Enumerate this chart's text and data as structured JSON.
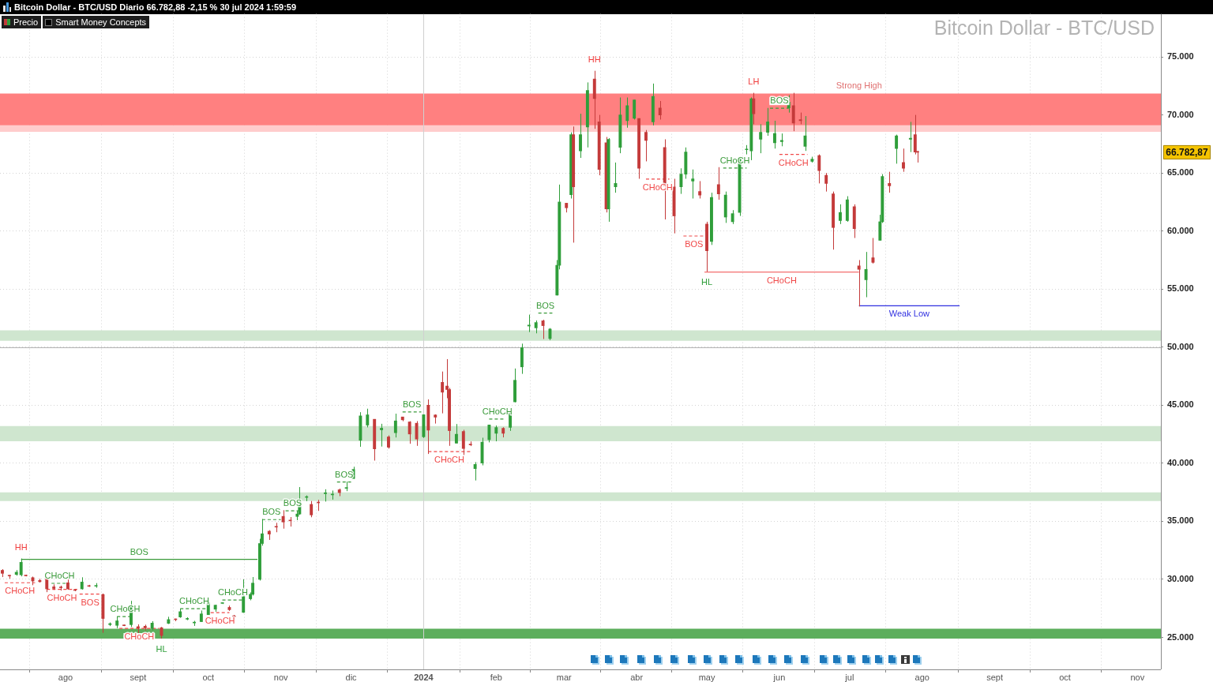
{
  "chart_data": {
    "type": "candlestick",
    "title": "Bitcoin Dollar - BTC/USD",
    "subtitle": "Bitcoin Dollar - BTC/USD Diario 66.782,88 -2,15 % 30 jul 2024 1:59:59",
    "xlim": [
      "2023-07-04",
      "2024-11-11"
    ],
    "xticks": [
      {
        "value": "2023-08-01",
        "label": "ago"
      },
      {
        "value": "2023-09-01",
        "label": "sept"
      },
      {
        "value": "2023-10-01",
        "label": "oct"
      },
      {
        "value": "2023-11-01",
        "label": "nov"
      },
      {
        "value": "2023-12-01",
        "label": "dic"
      },
      {
        "value": "2024-01-01",
        "label": "2024"
      },
      {
        "value": "2024-02-01",
        "label": "feb"
      },
      {
        "value": "2024-03-01",
        "label": "mar"
      },
      {
        "value": "2024-04-01",
        "label": "abr"
      },
      {
        "value": "2024-05-01",
        "label": "may"
      },
      {
        "value": "2024-06-01",
        "label": "jun"
      },
      {
        "value": "2024-07-01",
        "label": "jul"
      },
      {
        "value": "2024-08-01",
        "label": "ago"
      },
      {
        "value": "2024-09-01",
        "label": "sept"
      },
      {
        "value": "2024-10-01",
        "label": "oct"
      },
      {
        "value": "2024-11-01",
        "label": "nov"
      }
    ],
    "ylim": [
      22250,
      78700
    ],
    "yticks": [
      {
        "value": 25000,
        "label": "25.000"
      },
      {
        "value": 30000,
        "label": "30.000"
      },
      {
        "value": 35000,
        "label": "35.000"
      },
      {
        "value": 40000,
        "label": "40.000"
      },
      {
        "value": 45000,
        "label": "45.000"
      },
      {
        "value": 50000,
        "label": "50.000"
      },
      {
        "value": 55000,
        "label": "55.000"
      },
      {
        "value": 60000,
        "label": "60.000"
      },
      {
        "value": 65000,
        "label": "65.000"
      },
      {
        "value": 70000,
        "label": "70.000"
      },
      {
        "value": 75000,
        "label": "75.000"
      }
    ],
    "grid": true,
    "legend": "top left",
    "series": [
      {
        "name": "Precio",
        "x": [
          "2023-07-05",
          "2023-07-08",
          "2023-07-11",
          "2023-07-13",
          "2023-07-15",
          "2023-07-18",
          "2023-07-21",
          "2023-07-24",
          "2023-07-27",
          "2023-07-30",
          "2023-08-02",
          "2023-08-05",
          "2023-08-08",
          "2023-08-11",
          "2023-08-14",
          "2023-08-17",
          "2023-08-20",
          "2023-08-23",
          "2023-08-26",
          "2023-08-29",
          "2023-09-01",
          "2023-09-04",
          "2023-09-07",
          "2023-09-11",
          "2023-09-14",
          "2023-09-17",
          "2023-09-19",
          "2023-09-22",
          "2023-09-25",
          "2023-09-28",
          "2023-10-01",
          "2023-10-04",
          "2023-10-07",
          "2023-10-10",
          "2023-10-12",
          "2023-10-16",
          "2023-10-19",
          "2023-10-20",
          "2023-10-23",
          "2023-10-24",
          "2023-10-27",
          "2023-10-30",
          "2023-11-02",
          "2023-11-05",
          "2023-11-08",
          "2023-11-09",
          "2023-11-12",
          "2023-11-14",
          "2023-11-17",
          "2023-11-20",
          "2023-11-23",
          "2023-11-26",
          "2023-11-29",
          "2023-12-02",
          "2023-12-05",
          "2023-12-08",
          "2023-12-11",
          "2023-12-14",
          "2023-12-17",
          "2023-12-20",
          "2023-12-23",
          "2023-12-26",
          "2023-12-29",
          "2024-01-01",
          "2024-01-03",
          "2024-01-06",
          "2024-01-09",
          "2024-01-11",
          "2024-01-12",
          "2024-01-15",
          "2024-01-18",
          "2024-01-21",
          "2024-01-23",
          "2024-01-26",
          "2024-01-29",
          "2024-02-01",
          "2024-02-04",
          "2024-02-07",
          "2024-02-09",
          "2024-02-12",
          "2024-02-15",
          "2024-02-18",
          "2024-02-21",
          "2024-02-24",
          "2024-02-27",
          "2024-02-28",
          "2024-03-02",
          "2024-03-04",
          "2024-03-05",
          "2024-03-08",
          "2024-03-11",
          "2024-03-14",
          "2024-03-16",
          "2024-03-19",
          "2024-03-20",
          "2024-03-23",
          "2024-03-25",
          "2024-03-28",
          "2024-03-31",
          "2024-04-02",
          "2024-04-05",
          "2024-04-08",
          "2024-04-11",
          "2024-04-13",
          "2024-04-17",
          "2024-04-20",
          "2024-04-22",
          "2024-04-25",
          "2024-04-28",
          "2024-05-01",
          "2024-05-03",
          "2024-05-06",
          "2024-05-09",
          "2024-05-12",
          "2024-05-15",
          "2024-05-18",
          "2024-05-20",
          "2024-05-21",
          "2024-05-24",
          "2024-05-27",
          "2024-05-30",
          "2024-06-02",
          "2024-06-05",
          "2024-06-07",
          "2024-06-10",
          "2024-06-12",
          "2024-06-15",
          "2024-06-18",
          "2024-06-21",
          "2024-06-24",
          "2024-06-27",
          "2024-06-30",
          "2024-07-03",
          "2024-07-05",
          "2024-07-08",
          "2024-07-11",
          "2024-07-14",
          "2024-07-15",
          "2024-07-18",
          "2024-07-21",
          "2024-07-24",
          "2024-07-27",
          "2024-07-29",
          "2024-07-30"
        ],
        "ohlc": [
          [
            30780,
            30880,
            30200,
            30520
          ],
          [
            30340,
            30380,
            30050,
            30290
          ],
          [
            30420,
            30800,
            30320,
            30620
          ],
          [
            30390,
            31800,
            30260,
            31470
          ],
          [
            30320,
            30400,
            30260,
            30300
          ],
          [
            30150,
            30240,
            29500,
            29860
          ],
          [
            29910,
            30050,
            29730,
            29800
          ],
          [
            30090,
            30100,
            28900,
            29180
          ],
          [
            29360,
            29570,
            29100,
            29220
          ],
          [
            29350,
            29460,
            29030,
            29280
          ],
          [
            29710,
            30000,
            29110,
            29180
          ],
          [
            29100,
            29140,
            28980,
            29050
          ],
          [
            29180,
            30180,
            29120,
            29770
          ],
          [
            29430,
            29530,
            29360,
            29400
          ],
          [
            29410,
            29680,
            29280,
            29410
          ],
          [
            28700,
            28780,
            25400,
            26630
          ],
          [
            26100,
            26290,
            25980,
            26190
          ],
          [
            26040,
            26800,
            25800,
            26430
          ],
          [
            26050,
            26090,
            25980,
            26010
          ],
          [
            26100,
            28150,
            25900,
            27730
          ],
          [
            25930,
            26130,
            25330,
            25800
          ],
          [
            25970,
            26100,
            25590,
            25820
          ],
          [
            25760,
            26400,
            25630,
            26240
          ],
          [
            25840,
            25900,
            24900,
            25160
          ],
          [
            26210,
            26780,
            26160,
            26540
          ],
          [
            26570,
            26620,
            26400,
            26530
          ],
          [
            26760,
            27480,
            26690,
            27220
          ],
          [
            26570,
            26730,
            26490,
            26580
          ],
          [
            26250,
            26430,
            25990,
            26300
          ],
          [
            26360,
            27320,
            26330,
            27030
          ],
          [
            26960,
            28050,
            26950,
            27990
          ],
          [
            27430,
            27820,
            27210,
            27780
          ],
          [
            27930,
            28000,
            27880,
            27950
          ],
          [
            27590,
            27740,
            27290,
            27390
          ],
          [
            26870,
            26940,
            26560,
            26760
          ],
          [
            27160,
            30000,
            27120,
            28520
          ],
          [
            28330,
            28880,
            28200,
            28720
          ],
          [
            28720,
            30200,
            28610,
            29680
          ],
          [
            30000,
            33500,
            29900,
            33090
          ],
          [
            33090,
            35200,
            32900,
            33930
          ],
          [
            34150,
            34240,
            33400,
            33900
          ],
          [
            34530,
            34870,
            34060,
            34500
          ],
          [
            35430,
            35960,
            34370,
            34940
          ],
          [
            35080,
            35370,
            34550,
            35040
          ],
          [
            35420,
            35900,
            35100,
            35630
          ],
          [
            35630,
            37950,
            35560,
            36700
          ],
          [
            37060,
            37230,
            36740,
            37070
          ],
          [
            36460,
            36750,
            35350,
            35550
          ],
          [
            36600,
            36850,
            35900,
            36590
          ],
          [
            37380,
            37760,
            36700,
            37460
          ],
          [
            37280,
            37650,
            36870,
            37300
          ],
          [
            37720,
            37820,
            37170,
            37470
          ],
          [
            37840,
            38420,
            37600,
            37860
          ],
          [
            38690,
            39700,
            38660,
            39470
          ],
          [
            41980,
            44400,
            41420,
            44080
          ],
          [
            43290,
            44700,
            43090,
            44170
          ],
          [
            43790,
            43800,
            40230,
            41240
          ],
          [
            42880,
            43400,
            41440,
            43020
          ],
          [
            42270,
            42400,
            41260,
            41380
          ],
          [
            42630,
            44270,
            42220,
            43650
          ],
          [
            43990,
            44000,
            43620,
            43740
          ],
          [
            43560,
            43620,
            41680,
            42520
          ],
          [
            43450,
            43630,
            41500,
            42080
          ],
          [
            42280,
            44200,
            42180,
            44180
          ],
          [
            45000,
            45500,
            40800,
            42850
          ],
          [
            44160,
            44210,
            43420,
            43970
          ],
          [
            46970,
            47900,
            44300,
            46120
          ],
          [
            46650,
            48970,
            45600,
            46350
          ],
          [
            46350,
            46500,
            41500,
            42810
          ],
          [
            41730,
            43380,
            41720,
            42500
          ],
          [
            42740,
            42880,
            40700,
            41270
          ],
          [
            41650,
            41880,
            41480,
            41580
          ],
          [
            39540,
            40100,
            38520,
            39900
          ],
          [
            40020,
            42200,
            39820,
            41820
          ],
          [
            42030,
            43300,
            41800,
            43300
          ],
          [
            42580,
            43250,
            41890,
            43080
          ],
          [
            43010,
            43100,
            42230,
            42580
          ],
          [
            43090,
            44340,
            42790,
            44320
          ],
          [
            45290,
            48160,
            45250,
            47150
          ],
          [
            48300,
            50300,
            47700,
            49950
          ],
          [
            51820,
            52800,
            51300,
            51900
          ],
          [
            51660,
            52300,
            51190,
            52120
          ],
          [
            52270,
            52360,
            50700,
            51850
          ],
          [
            50740,
            51640,
            50600,
            51560
          ],
          [
            54480,
            57500,
            54450,
            57050
          ],
          [
            57050,
            64000,
            56700,
            62500
          ],
          [
            62400,
            62400,
            61600,
            62000
          ],
          [
            63120,
            68500,
            62800,
            68300
          ],
          [
            68300,
            69000,
            59000,
            63800
          ],
          [
            66900,
            70100,
            66300,
            68300
          ],
          [
            68950,
            72800,
            67200,
            72100
          ],
          [
            73100,
            73800,
            68800,
            71400
          ],
          [
            69400,
            70000,
            64800,
            65300
          ],
          [
            67600,
            68100,
            61600,
            61900
          ],
          [
            61900,
            68000,
            60800,
            67900
          ],
          [
            63800,
            65900,
            63300,
            64100
          ],
          [
            67200,
            71500,
            66700,
            70000
          ],
          [
            69500,
            71500,
            68900,
            70800
          ],
          [
            69700,
            71300,
            69600,
            71300
          ],
          [
            69700,
            69700,
            64500,
            65400
          ],
          [
            68500,
            68700,
            66000,
            67800
          ],
          [
            69400,
            72700,
            69100,
            71600
          ],
          [
            70600,
            71200,
            69600,
            70000
          ],
          [
            67200,
            67900,
            61000,
            63900
          ],
          [
            63800,
            64500,
            59800,
            61300
          ],
          [
            63800,
            65400,
            63200,
            64900
          ],
          [
            64900,
            67200,
            64500,
            66800
          ],
          [
            64300,
            65300,
            62800,
            64500
          ],
          [
            63400,
            64300,
            62800,
            63100
          ],
          [
            60600,
            60800,
            56500,
            58300
          ],
          [
            59100,
            63300,
            58800,
            62900
          ],
          [
            64000,
            65500,
            62700,
            63200
          ],
          [
            61200,
            63400,
            60700,
            63100
          ],
          [
            60800,
            61800,
            60600,
            61500
          ],
          [
            61600,
            66400,
            61300,
            66300
          ],
          [
            67000,
            67400,
            66600,
            67000
          ],
          [
            66900,
            71500,
            66100,
            71400
          ],
          [
            71400,
            71900,
            69200,
            70100
          ],
          [
            67900,
            69200,
            66700,
            68500
          ],
          [
            68500,
            70600,
            68200,
            69400
          ],
          [
            67600,
            69500,
            67100,
            68400
          ],
          [
            67700,
            68400,
            67300,
            67800
          ],
          [
            70600,
            71700,
            70200,
            71100
          ],
          [
            70800,
            71900,
            68600,
            69300
          ],
          [
            69600,
            70200,
            69200,
            69500
          ],
          [
            67300,
            69900,
            66900,
            68200
          ],
          [
            66000,
            66400,
            65900,
            66200
          ],
          [
            66500,
            66600,
            64100,
            65200
          ],
          [
            64800,
            65000,
            63400,
            64100
          ],
          [
            63200,
            63400,
            58400,
            60300
          ],
          [
            60900,
            62300,
            60600,
            61600
          ],
          [
            60900,
            63000,
            60800,
            62700
          ],
          [
            62100,
            62300,
            59400,
            60200
          ],
          [
            57000,
            57500,
            53500,
            56700
          ],
          [
            55800,
            58200,
            54300,
            56700
          ],
          [
            57700,
            59400,
            57200,
            57300
          ],
          [
            59200,
            61400,
            59200,
            60800
          ],
          [
            60800,
            64900,
            60700,
            64700
          ],
          [
            64100,
            65100,
            63300,
            63900
          ],
          [
            67100,
            68300,
            65800,
            68200
          ],
          [
            65900,
            67100,
            65100,
            65400
          ],
          [
            67900,
            69400,
            66800,
            68000
          ],
          [
            68300,
            70000,
            66600,
            66800
          ],
          [
            66800,
            66900,
            65900,
            66782.87
          ]
        ]
      },
      {
        "type": "line",
        "name": "BOS",
        "color": "#3a9a3a",
        "line_style": "solid",
        "x": [
          "2023-07-13",
          "2023-10-22"
        ],
        "values": [
          31720,
          31720
        ]
      },
      {
        "type": "line",
        "name": "CHoCH",
        "color": "#f04848",
        "line_style": "dashed",
        "x": [
          "2023-07-06",
          "2023-07-19"
        ],
        "values": [
          29710,
          29710
        ]
      },
      {
        "type": "line",
        "name": "CHoCH",
        "color": "#3a9a3a",
        "line_style": "dashed",
        "x": [
          "2023-07-26",
          "2023-08-02"
        ],
        "values": [
          29660,
          29660
        ]
      },
      {
        "type": "line",
        "name": "CHoCH",
        "color": "#f04848",
        "line_style": "dashed",
        "x": [
          "2023-07-24",
          "2023-08-06"
        ],
        "values": [
          29140,
          29140
        ]
      },
      {
        "type": "line",
        "name": "BOS",
        "color": "#f04848",
        "line_style": "dashed",
        "x": [
          "2023-08-07",
          "2023-08-16"
        ],
        "values": [
          28730,
          28730
        ]
      },
      {
        "type": "line",
        "name": "CHoCH",
        "color": "#3a9a3a",
        "line_style": "dashed",
        "x": [
          "2023-08-23",
          "2023-08-30"
        ],
        "values": [
          26800,
          26800
        ]
      },
      {
        "type": "line",
        "name": "CHoCH",
        "color": "#f04848",
        "line_style": "dashed",
        "x": [
          "2023-08-24",
          "2023-09-10"
        ],
        "values": [
          25780,
          25780
        ]
      },
      {
        "type": "line",
        "name": "CHoCH",
        "color": "#3a9a3a",
        "line_style": "dashed",
        "x": [
          "2023-09-19",
          "2023-10-01"
        ],
        "values": [
          27480,
          27480
        ]
      },
      {
        "type": "line",
        "name": "CHoCH",
        "color": "#f04848",
        "line_style": "dashed",
        "x": [
          "2023-10-02",
          "2023-10-10"
        ],
        "values": [
          27140,
          27140
        ]
      },
      {
        "type": "line",
        "name": "CHoCH",
        "color": "#3a9a3a",
        "line_style": "dashed",
        "x": [
          "2023-10-07",
          "2023-10-16"
        ],
        "values": [
          28230,
          28230
        ]
      },
      {
        "type": "line",
        "name": "BOS",
        "color": "#3a9a3a",
        "line_style": "dashed",
        "x": [
          "2023-10-24",
          "2023-11-01"
        ],
        "values": [
          35150,
          35150
        ]
      },
      {
        "type": "line",
        "name": "BOS",
        "color": "#3a9a3a",
        "line_style": "dashed",
        "x": [
          "2023-11-03",
          "2023-11-09"
        ],
        "values": [
          35900,
          35900
        ]
      },
      {
        "type": "line",
        "name": "BOS",
        "color": "#3a9a3a",
        "line_style": "dashed",
        "x": [
          "2023-11-25",
          "2023-12-01"
        ],
        "values": [
          38390,
          38390
        ]
      },
      {
        "type": "line",
        "name": "BOS",
        "color": "#3a9a3a",
        "line_style": "dashed",
        "x": [
          "2023-12-23",
          "2023-12-31"
        ],
        "values": [
          44420,
          44420
        ]
      },
      {
        "type": "line",
        "name": "CHoCH",
        "color": "#f04848",
        "line_style": "dashed",
        "x": [
          "2024-01-03",
          "2024-01-21"
        ],
        "values": [
          41000,
          41000
        ]
      },
      {
        "type": "line",
        "name": "CHoCH",
        "color": "#3a9a3a",
        "line_style": "dashed",
        "x": [
          "2024-01-29",
          "2024-02-05"
        ],
        "values": [
          43810,
          43810
        ]
      },
      {
        "type": "line",
        "name": "BOS",
        "color": "#3a9a3a",
        "line_style": "dashed",
        "x": [
          "2024-02-19",
          "2024-02-25"
        ],
        "values": [
          52930,
          52930
        ]
      },
      {
        "type": "line",
        "name": "CHoCH",
        "color": "#f04848",
        "line_style": "dashed",
        "x": [
          "2024-04-05",
          "2024-04-15"
        ],
        "values": [
          64470,
          64470
        ]
      },
      {
        "type": "line",
        "name": "BOS",
        "color": "#f04848",
        "line_style": "dashed",
        "x": [
          "2024-04-21",
          "2024-04-30"
        ],
        "values": [
          59570,
          59570
        ]
      },
      {
        "type": "line",
        "name": "CHoCH",
        "color": "#f04848",
        "line_style": "solid",
        "x": [
          "2024-04-30",
          "2024-07-05"
        ],
        "values": [
          56460,
          56460
        ]
      },
      {
        "type": "line",
        "name": "CHoCH",
        "color": "#3a9a3a",
        "line_style": "dashed",
        "x": [
          "2024-05-08",
          "2024-05-18"
        ],
        "values": [
          65420,
          65420
        ]
      },
      {
        "type": "line",
        "name": "BOS",
        "color": "#3a9a3a",
        "line_style": "dashed",
        "x": [
          "2024-05-28",
          "2024-06-05"
        ],
        "values": [
          70570,
          70570
        ]
      },
      {
        "type": "line",
        "name": "CHoCH",
        "color": "#f04848",
        "line_style": "dashed",
        "x": [
          "2024-06-01",
          "2024-06-13"
        ],
        "values": [
          66600,
          66600
        ]
      },
      {
        "type": "line",
        "name": "Weak Low",
        "color": "#3030e0",
        "line_style": "solid",
        "x": [
          "2024-07-05",
          "2024-08-17"
        ],
        "values": [
          53560,
          53560
        ]
      }
    ],
    "bands": [
      {
        "axis": "y",
        "from": 24900,
        "to": 25750,
        "color": "#5cae5c"
      },
      {
        "axis": "y",
        "from": 36750,
        "to": 37500,
        "color": "#cfe6cf"
      },
      {
        "axis": "y",
        "from": 41900,
        "to": 43200,
        "color": "#cfe6cf"
      },
      {
        "axis": "y",
        "from": 50550,
        "to": 51450,
        "color": "#cfe6cf"
      },
      {
        "axis": "y",
        "from": 68550,
        "to": 69100,
        "color": "#ffcccc"
      },
      {
        "axis": "y",
        "from": 69100,
        "to": 71840,
        "color": "#ff8080",
        "label": "Strong High"
      }
    ],
    "ref_lines": [
      {
        "axis": "y",
        "value": 50000,
        "color": "#b4b4b4"
      },
      {
        "axis": "x",
        "value": "2024-01-01",
        "color": "#d0d0d0"
      }
    ],
    "annotations": [
      {
        "text": "HH",
        "x": "2023-07-13",
        "y": 31800
      },
      {
        "text": "HL",
        "x": "2023-09-11",
        "y": 24900
      },
      {
        "text": "HH",
        "x": "2024-03-14",
        "y": 73800
      },
      {
        "text": "HL",
        "x": "2024-05-01",
        "y": 56500
      },
      {
        "text": "LH",
        "x": "2024-05-21",
        "y": 71900
      },
      "66.782,87",
      "Smart Money Concepts"
    ]
  }
}
